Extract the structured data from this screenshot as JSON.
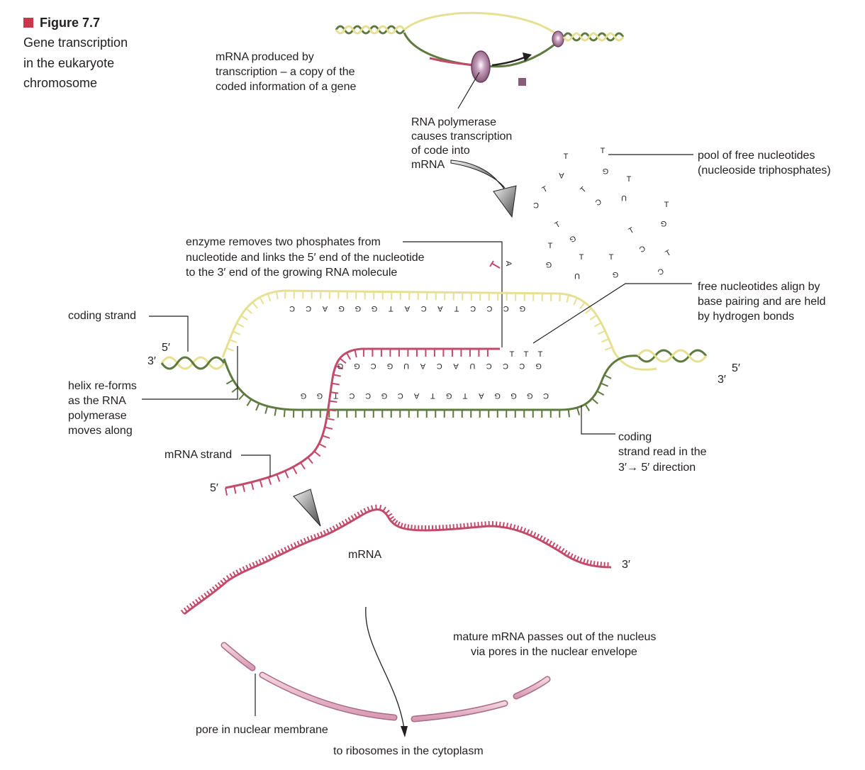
{
  "figure": {
    "number": "Figure 7.7",
    "title_lines": [
      "Gene transcription",
      "in the eukaryote",
      "chromosome"
    ]
  },
  "colors": {
    "template_strand": "#5e7a3e",
    "coding_strand": "#e6e092",
    "mrna": "#c24a6a",
    "membrane": "#e8b9cc",
    "membrane_edge": "#a86b85",
    "polymerase": "#8a5a7a",
    "accent": "#c8374a",
    "line": "#231f20"
  },
  "labels": {
    "mrna_produced": [
      "mRNA produced by",
      "transcription – a copy of the",
      "coded information of a gene"
    ],
    "rna_polymerase": [
      "RNA polymerase",
      "causes transcription",
      "of code into",
      "mRNA"
    ],
    "pool": [
      "pool of free nucleotides",
      "(nucleoside triphosphates)"
    ],
    "enzyme": [
      "enzyme removes two phosphates from",
      "nucleotide and links the 5′ end of the nucleotide",
      "to the 3′ end of the growing RNA molecule"
    ],
    "coding_strand": "coding strand",
    "free_align": [
      "free nucleotides align by",
      "base pairing and are held",
      "by hydrogen bonds"
    ],
    "helix_reforms": [
      "helix re-forms",
      "as the RNA",
      "polymerase",
      "moves along"
    ],
    "mrna_strand": "mRNA strand",
    "coding_read": [
      "coding",
      "strand read in the",
      "3′→ 5′ direction"
    ],
    "mrna": "mRNA",
    "mature": [
      "mature mRNA passes out of the nucleus",
      "via pores in the nuclear envelope"
    ],
    "pore": "pore in nuclear membrane",
    "ribosomes": "to ribosomes in the cytoplasm"
  },
  "ends": {
    "left_5": "5′",
    "left_3": "3′",
    "right_5": "5′",
    "right_3": "3′",
    "mrna_5": "5′",
    "mrna_3": "3′"
  },
  "sequences": {
    "top_strand": [
      "C",
      "C",
      "A",
      "G",
      "G",
      "G",
      "T",
      "A",
      "C",
      "A",
      "T",
      "C",
      "C",
      "C",
      "G"
    ],
    "mrna_bases": [
      "G",
      "G",
      "C",
      "G",
      "U",
      "A",
      "C",
      "A",
      "U",
      "C",
      "C",
      "C",
      "G"
    ],
    "bottom_strand": [
      "G",
      "G",
      "T",
      "C",
      "C",
      "G",
      "C",
      "A",
      "T",
      "G",
      "T",
      "A",
      "G",
      "G",
      "G",
      "C"
    ],
    "aligned_free": [
      "T",
      "T",
      "T"
    ],
    "entering": "A"
  },
  "free_nucleotides": [
    "T",
    "A",
    "T",
    "C",
    "T",
    "C",
    "T",
    "U",
    "T",
    "G",
    "T",
    "G",
    "T",
    "G",
    "T",
    "C",
    "T",
    "U",
    "T",
    "G",
    "T",
    "G",
    "T",
    "C"
  ]
}
